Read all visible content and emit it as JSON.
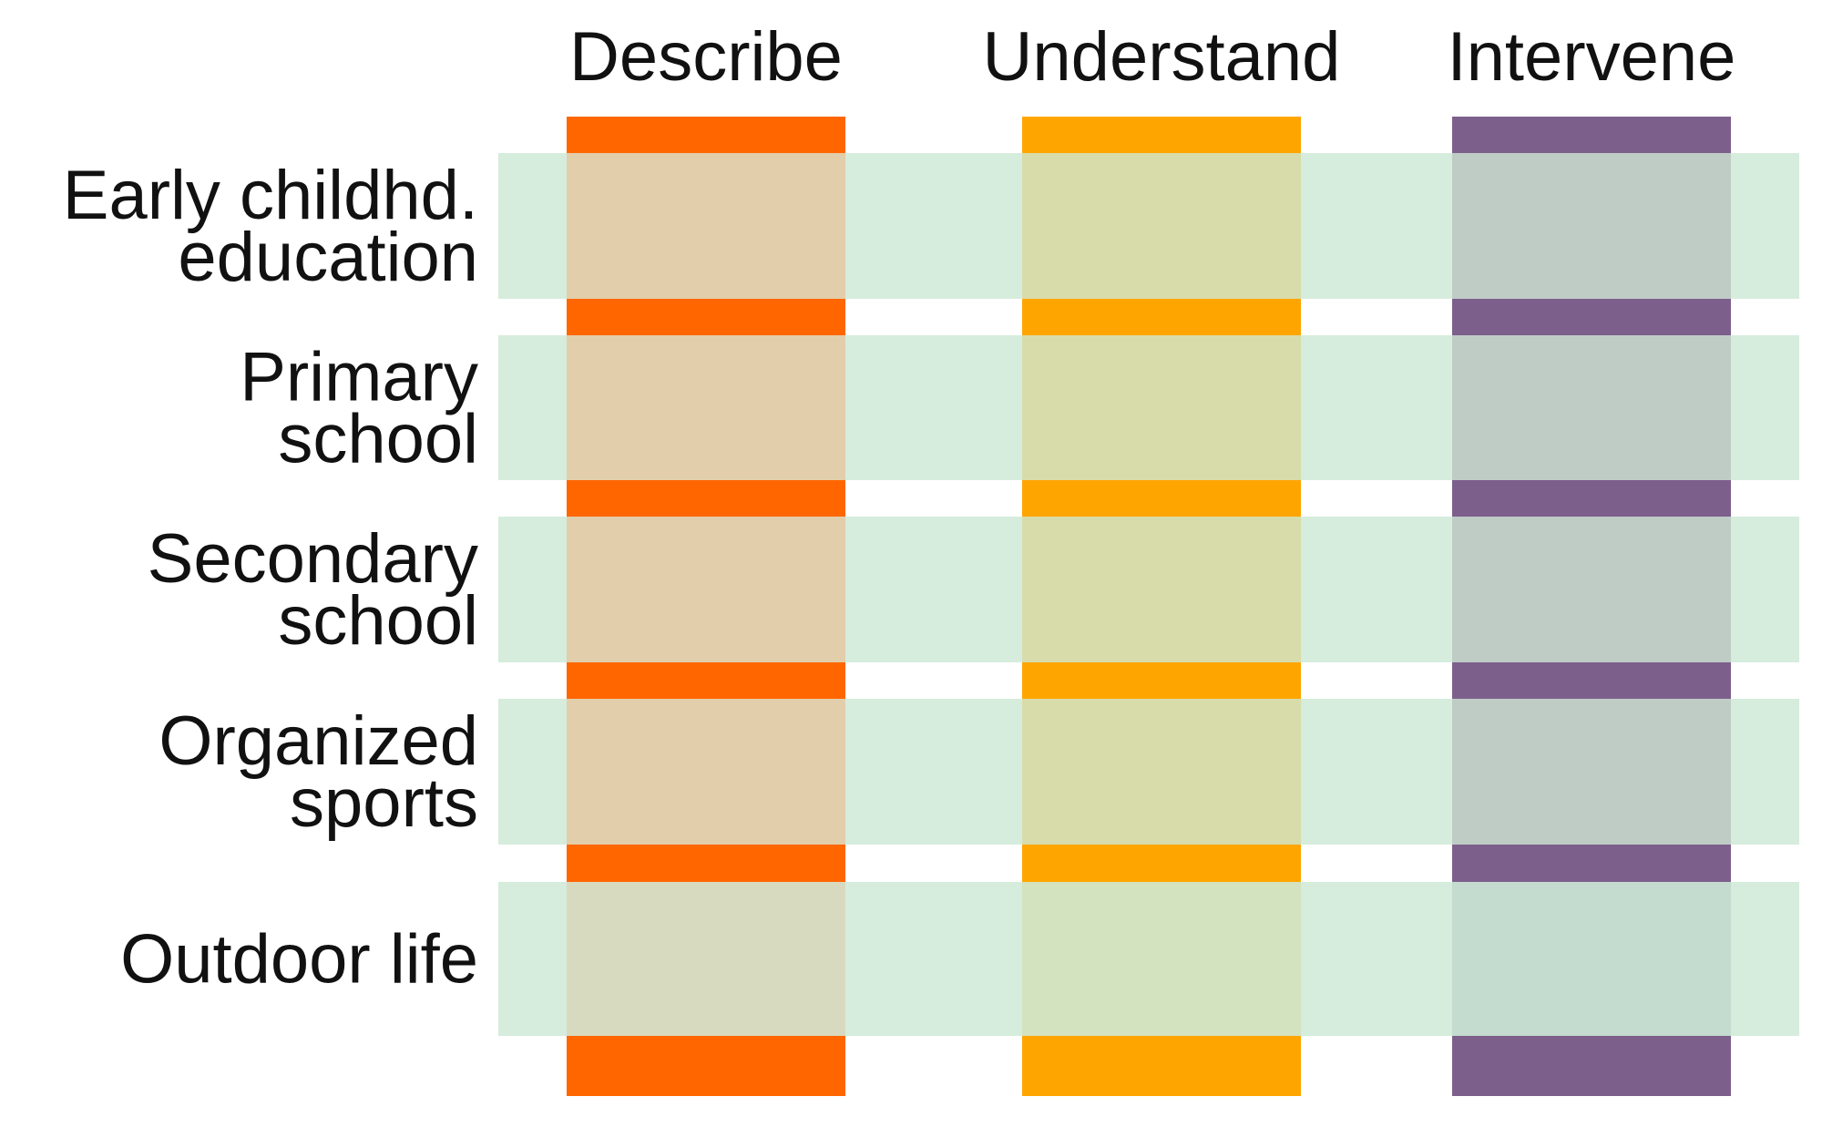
{
  "columns": [
    {
      "label": "Describe",
      "color": "#ff6600",
      "overlay_color": "#e2ceaa",
      "outdoor_overlay_color": "#d8dabf"
    },
    {
      "label": "Understand",
      "color": "#ffa500",
      "overlay_color": "#d8dcaa",
      "outdoor_overlay_color": "#d3e2bf"
    },
    {
      "label": "Intervene",
      "color": "#7d5f8c",
      "overlay_color": "#bfccc6",
      "outdoor_overlay_color": "#c4dccf"
    }
  ],
  "rows": [
    {
      "lines": [
        "Early childhd.",
        "education"
      ]
    },
    {
      "lines": [
        "Primary",
        "school"
      ]
    },
    {
      "lines": [
        "Secondary",
        "school"
      ]
    },
    {
      "lines": [
        "Organized",
        "sports"
      ]
    },
    {
      "lines": [
        "Outdoor life"
      ]
    }
  ],
  "colors": {
    "band": "#d6ecdc",
    "text": "#111111",
    "background": "#ffffff"
  }
}
